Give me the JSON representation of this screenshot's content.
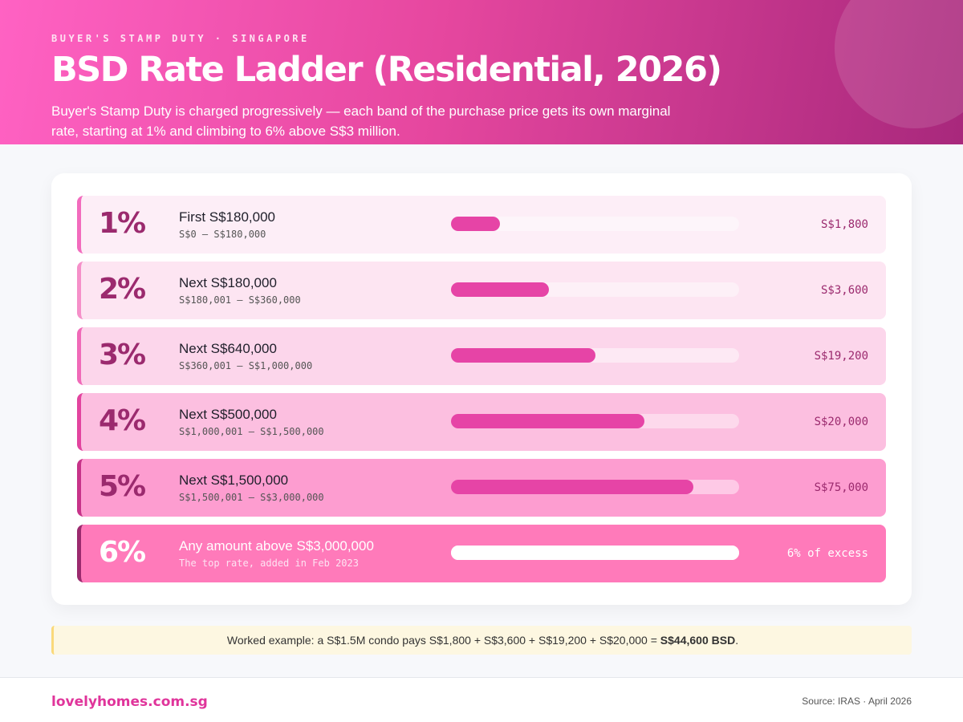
{
  "header": {
    "eyebrow": "BUYER'S STAMP DUTY · SINGAPORE",
    "title": "BSD Rate Ladder (Residential, 2026)",
    "subtitle": "Buyer's Stamp Duty is charged progressively — each band of the purchase price gets its own marginal rate, starting at 1% and climbing to 6% above S$3 million."
  },
  "bands": [
    {
      "rate": "1%",
      "label": "First S$180,000",
      "range": "S$0 – S$180,000",
      "amount": "S$1,800",
      "fill_percent": 17,
      "bg": "#fdeef7",
      "border": "#f26bbd",
      "track": "#fdf5fa"
    },
    {
      "rate": "2%",
      "label": "Next S$180,000",
      "range": "S$180,001 – S$360,000",
      "amount": "S$3,600",
      "fill_percent": 34,
      "bg": "#fde5f2",
      "border": "#f590c9",
      "track": "#fdf0f7"
    },
    {
      "rate": "3%",
      "label": "Next S$640,000",
      "range": "S$360,001 – S$1,000,000",
      "amount": "S$19,200",
      "fill_percent": 50,
      "bg": "#fcd6eb",
      "border": "#f06ab8",
      "track": "#fde9f4"
    },
    {
      "rate": "4%",
      "label": "Next S$500,000",
      "range": "S$1,000,001 – S$1,500,000",
      "amount": "S$20,000",
      "fill_percent": 67,
      "bg": "#fcbfe0",
      "border": "#e2449f",
      "track": "#fdd9ec"
    },
    {
      "rate": "5%",
      "label": "Next S$1,500,000",
      "range": "S$1,500,001 – S$3,000,000",
      "amount": "S$75,000",
      "fill_percent": 84,
      "bg": "#fd9dd0",
      "border": "#c73389",
      "track": "#fec9e6"
    },
    {
      "rate": "6%",
      "label": "Any amount above S$3,000,000",
      "range": "The top rate, added in Feb 2023",
      "amount": "6% of excess",
      "fill_percent": 100,
      "bg": "#ff7aba",
      "border": "#9b2a6e",
      "track": "#ffffff",
      "inverse": true
    }
  ],
  "note": {
    "text": "Worked example: a S$1.5M condo pays S$1,800 + S$3,600 + S$19,200 + S$20,000 = ",
    "bold": "S$44,600 BSD",
    "end": "."
  },
  "footer": {
    "brand": "lovelyhomes.com.sg",
    "source": "Source: IRAS · April 2026"
  }
}
